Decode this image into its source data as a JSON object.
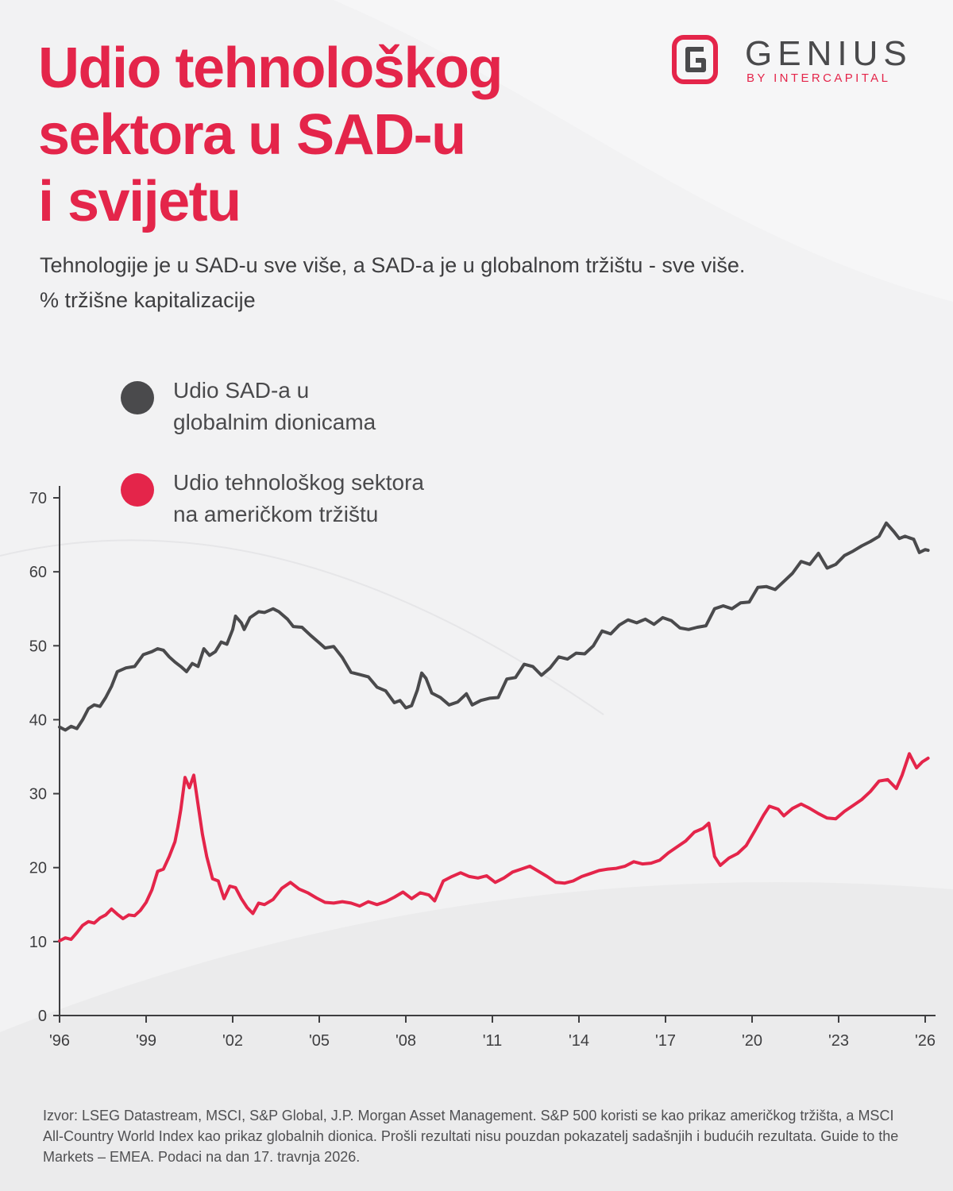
{
  "header": {
    "title_lines": [
      "Udio tehnološkog",
      "sektora u SAD-u",
      "i svijetu"
    ],
    "subtitle": "Tehnologije je u SAD-u sve više, a SAD-a je u globalnom tržištu - sve više.",
    "unit_line": "% tržišne kapitalizacije"
  },
  "brand": {
    "name": "GENIUS",
    "tagline": "BY INTERCAPITAL",
    "logo_icon": "genius-g-logo-icon"
  },
  "colors": {
    "accent": "#e4254a",
    "series_us_share": "#4a4a4c",
    "series_tech_share": "#e4254a",
    "text": "#3e3e40",
    "background": "#f2f2f3"
  },
  "footnote": "Izvor: LSEG Datastream, MSCI, S&P Global, J.P. Morgan Asset Management. S&P 500 koristi se kao prikaz američkog tržišta, a MSCI All-Country World Index kao prikaz globalnih dionica. Prošli rezultati nisu pouzdan pokazatelj sadašnjih i budućih rezultata. Guide to the Markets – EMEA. Podaci na dan 17. travnja 2026.",
  "chart_data": {
    "type": "line",
    "title": "",
    "xlabel": "",
    "ylabel": "",
    "ylim": [
      0,
      70
    ],
    "xlim": [
      1996,
      2026.2
    ],
    "yticks": [
      0,
      10,
      20,
      30,
      40,
      50,
      60,
      70
    ],
    "ytick_labels": [
      "0",
      "10",
      "20",
      "30",
      "40",
      "50",
      "60",
      "70"
    ],
    "xticks": [
      1996,
      1999,
      2002,
      2005,
      2008,
      2011,
      2014,
      2017,
      2020,
      2023,
      2026
    ],
    "xtick_labels": [
      "'96",
      "'99",
      "'02",
      "'05",
      "'08",
      "'11",
      "'14",
      "'17",
      "'20",
      "'23",
      "'26"
    ],
    "grid": false,
    "legend_position": "top-left",
    "series": [
      {
        "name": "Udio SAD-a u globalnim dionicama",
        "legend_lines": [
          "Udio SAD-a u",
          "globalnim dionicama"
        ],
        "color": "#4a4a4c",
        "points": [
          [
            1996.0,
            39.0
          ],
          [
            1996.2,
            38.6
          ],
          [
            1996.4,
            39.1
          ],
          [
            1996.6,
            38.8
          ],
          [
            1996.8,
            40.0
          ],
          [
            1997.0,
            41.5
          ],
          [
            1997.2,
            42.0
          ],
          [
            1997.4,
            41.8
          ],
          [
            1997.6,
            43.0
          ],
          [
            1997.8,
            44.5
          ],
          [
            1998.0,
            46.5
          ],
          [
            1998.3,
            47.0
          ],
          [
            1998.6,
            47.2
          ],
          [
            1998.9,
            48.8
          ],
          [
            1999.2,
            49.2
          ],
          [
            1999.4,
            49.6
          ],
          [
            1999.6,
            49.4
          ],
          [
            1999.8,
            48.5
          ],
          [
            2000.0,
            47.8
          ],
          [
            2000.2,
            47.2
          ],
          [
            2000.4,
            46.5
          ],
          [
            2000.6,
            47.6
          ],
          [
            2000.8,
            47.2
          ],
          [
            2001.0,
            49.6
          ],
          [
            2001.2,
            48.7
          ],
          [
            2001.4,
            49.2
          ],
          [
            2001.6,
            50.5
          ],
          [
            2001.8,
            50.2
          ],
          [
            2002.0,
            52.2
          ],
          [
            2002.1,
            54.0
          ],
          [
            2002.3,
            53.1
          ],
          [
            2002.4,
            52.2
          ],
          [
            2002.6,
            53.8
          ],
          [
            2002.9,
            54.6
          ],
          [
            2003.1,
            54.5
          ],
          [
            2003.4,
            55.0
          ],
          [
            2003.6,
            54.6
          ],
          [
            2003.9,
            53.6
          ],
          [
            2004.1,
            52.6
          ],
          [
            2004.4,
            52.5
          ],
          [
            2004.7,
            51.4
          ],
          [
            2005.0,
            50.4
          ],
          [
            2005.2,
            49.7
          ],
          [
            2005.5,
            49.9
          ],
          [
            2005.8,
            48.4
          ],
          [
            2006.1,
            46.4
          ],
          [
            2006.4,
            46.1
          ],
          [
            2006.7,
            45.8
          ],
          [
            2007.0,
            44.4
          ],
          [
            2007.3,
            43.9
          ],
          [
            2007.6,
            42.3
          ],
          [
            2007.8,
            42.6
          ],
          [
            2008.0,
            41.6
          ],
          [
            2008.2,
            41.9
          ],
          [
            2008.4,
            44.0
          ],
          [
            2008.55,
            46.3
          ],
          [
            2008.7,
            45.6
          ],
          [
            2008.9,
            43.6
          ],
          [
            2009.2,
            43.0
          ],
          [
            2009.5,
            42.0
          ],
          [
            2009.8,
            42.4
          ],
          [
            2010.1,
            43.5
          ],
          [
            2010.3,
            42.0
          ],
          [
            2010.6,
            42.6
          ],
          [
            2010.9,
            42.9
          ],
          [
            2011.2,
            43.0
          ],
          [
            2011.5,
            45.5
          ],
          [
            2011.8,
            45.7
          ],
          [
            2012.1,
            47.5
          ],
          [
            2012.4,
            47.2
          ],
          [
            2012.7,
            46.0
          ],
          [
            2013.0,
            47.0
          ],
          [
            2013.3,
            48.5
          ],
          [
            2013.6,
            48.2
          ],
          [
            2013.9,
            49.0
          ],
          [
            2014.2,
            48.9
          ],
          [
            2014.5,
            50.0
          ],
          [
            2014.8,
            52.0
          ],
          [
            2015.1,
            51.6
          ],
          [
            2015.4,
            52.8
          ],
          [
            2015.7,
            53.5
          ],
          [
            2016.0,
            53.1
          ],
          [
            2016.3,
            53.6
          ],
          [
            2016.6,
            52.9
          ],
          [
            2016.9,
            53.8
          ],
          [
            2017.2,
            53.4
          ],
          [
            2017.5,
            52.4
          ],
          [
            2017.8,
            52.2
          ],
          [
            2018.1,
            52.5
          ],
          [
            2018.4,
            52.7
          ],
          [
            2018.7,
            55.0
          ],
          [
            2019.0,
            55.4
          ],
          [
            2019.3,
            55.0
          ],
          [
            2019.6,
            55.8
          ],
          [
            2019.9,
            55.9
          ],
          [
            2020.2,
            57.9
          ],
          [
            2020.5,
            58.0
          ],
          [
            2020.8,
            57.6
          ],
          [
            2021.1,
            58.7
          ],
          [
            2021.4,
            59.8
          ],
          [
            2021.7,
            61.4
          ],
          [
            2022.0,
            61.0
          ],
          [
            2022.3,
            62.5
          ],
          [
            2022.6,
            60.5
          ],
          [
            2022.9,
            61.0
          ],
          [
            2023.2,
            62.2
          ],
          [
            2023.5,
            62.8
          ],
          [
            2023.8,
            63.5
          ],
          [
            2024.1,
            64.1
          ],
          [
            2024.4,
            64.8
          ],
          [
            2024.65,
            66.6
          ],
          [
            2024.9,
            65.5
          ],
          [
            2025.1,
            64.5
          ],
          [
            2025.3,
            64.8
          ],
          [
            2025.6,
            64.4
          ],
          [
            2025.8,
            62.6
          ],
          [
            2026.0,
            63.0
          ],
          [
            2026.1,
            62.9
          ]
        ]
      },
      {
        "name": "Udio tehnološkog sektora na američkom tržištu",
        "legend_lines": [
          "Udio tehnološkog sektora",
          "na američkom tržištu"
        ],
        "color": "#e4254a",
        "points": [
          [
            1996.0,
            10.1
          ],
          [
            1996.2,
            10.5
          ],
          [
            1996.4,
            10.3
          ],
          [
            1996.6,
            11.2
          ],
          [
            1996.8,
            12.2
          ],
          [
            1997.0,
            12.7
          ],
          [
            1997.2,
            12.5
          ],
          [
            1997.4,
            13.2
          ],
          [
            1997.6,
            13.6
          ],
          [
            1997.8,
            14.4
          ],
          [
            1998.0,
            13.7
          ],
          [
            1998.2,
            13.1
          ],
          [
            1998.4,
            13.6
          ],
          [
            1998.6,
            13.5
          ],
          [
            1998.8,
            14.2
          ],
          [
            1999.0,
            15.3
          ],
          [
            1999.2,
            17.0
          ],
          [
            1999.4,
            19.5
          ],
          [
            1999.6,
            19.8
          ],
          [
            1999.8,
            21.5
          ],
          [
            2000.0,
            23.5
          ],
          [
            2000.1,
            25.5
          ],
          [
            2000.2,
            27.8
          ],
          [
            2000.35,
            32.2
          ],
          [
            2000.5,
            30.8
          ],
          [
            2000.65,
            32.5
          ],
          [
            2000.8,
            28.5
          ],
          [
            2000.95,
            24.5
          ],
          [
            2001.1,
            21.5
          ],
          [
            2001.3,
            18.5
          ],
          [
            2001.5,
            18.2
          ],
          [
            2001.7,
            15.8
          ],
          [
            2001.9,
            17.5
          ],
          [
            2002.1,
            17.3
          ],
          [
            2002.3,
            15.8
          ],
          [
            2002.5,
            14.6
          ],
          [
            2002.7,
            13.8
          ],
          [
            2002.9,
            15.2
          ],
          [
            2003.1,
            15.0
          ],
          [
            2003.4,
            15.7
          ],
          [
            2003.7,
            17.2
          ],
          [
            2004.0,
            18.0
          ],
          [
            2004.3,
            17.1
          ],
          [
            2004.6,
            16.6
          ],
          [
            2004.9,
            15.9
          ],
          [
            2005.2,
            15.3
          ],
          [
            2005.5,
            15.2
          ],
          [
            2005.8,
            15.4
          ],
          [
            2006.1,
            15.2
          ],
          [
            2006.4,
            14.8
          ],
          [
            2006.7,
            15.4
          ],
          [
            2007.0,
            15.0
          ],
          [
            2007.3,
            15.4
          ],
          [
            2007.6,
            16.0
          ],
          [
            2007.9,
            16.7
          ],
          [
            2008.2,
            15.8
          ],
          [
            2008.5,
            16.6
          ],
          [
            2008.8,
            16.3
          ],
          [
            2009.0,
            15.5
          ],
          [
            2009.3,
            18.2
          ],
          [
            2009.6,
            18.8
          ],
          [
            2009.9,
            19.3
          ],
          [
            2010.2,
            18.8
          ],
          [
            2010.5,
            18.6
          ],
          [
            2010.8,
            18.9
          ],
          [
            2011.1,
            18.0
          ],
          [
            2011.4,
            18.6
          ],
          [
            2011.7,
            19.4
          ],
          [
            2012.0,
            19.8
          ],
          [
            2012.3,
            20.2
          ],
          [
            2012.6,
            19.5
          ],
          [
            2012.9,
            18.8
          ],
          [
            2013.2,
            18.0
          ],
          [
            2013.5,
            17.9
          ],
          [
            2013.8,
            18.2
          ],
          [
            2014.1,
            18.8
          ],
          [
            2014.4,
            19.2
          ],
          [
            2014.7,
            19.6
          ],
          [
            2015.0,
            19.8
          ],
          [
            2015.3,
            19.9
          ],
          [
            2015.6,
            20.2
          ],
          [
            2015.9,
            20.8
          ],
          [
            2016.2,
            20.5
          ],
          [
            2016.5,
            20.6
          ],
          [
            2016.8,
            21.0
          ],
          [
            2017.1,
            22.0
          ],
          [
            2017.4,
            22.8
          ],
          [
            2017.7,
            23.6
          ],
          [
            2018.0,
            24.8
          ],
          [
            2018.3,
            25.3
          ],
          [
            2018.5,
            26.0
          ],
          [
            2018.7,
            21.5
          ],
          [
            2018.9,
            20.3
          ],
          [
            2019.2,
            21.3
          ],
          [
            2019.5,
            21.9
          ],
          [
            2019.8,
            23.0
          ],
          [
            2020.1,
            25.0
          ],
          [
            2020.4,
            27.1
          ],
          [
            2020.6,
            28.3
          ],
          [
            2020.9,
            27.9
          ],
          [
            2021.1,
            27.0
          ],
          [
            2021.4,
            28.0
          ],
          [
            2021.7,
            28.6
          ],
          [
            2022.0,
            28.0
          ],
          [
            2022.3,
            27.3
          ],
          [
            2022.6,
            26.7
          ],
          [
            2022.9,
            26.6
          ],
          [
            2023.2,
            27.6
          ],
          [
            2023.5,
            28.4
          ],
          [
            2023.8,
            29.2
          ],
          [
            2024.1,
            30.3
          ],
          [
            2024.4,
            31.7
          ],
          [
            2024.7,
            31.9
          ],
          [
            2025.0,
            30.7
          ],
          [
            2025.2,
            32.5
          ],
          [
            2025.45,
            35.4
          ],
          [
            2025.7,
            33.5
          ],
          [
            2025.9,
            34.3
          ],
          [
            2026.1,
            34.8
          ]
        ]
      }
    ]
  }
}
